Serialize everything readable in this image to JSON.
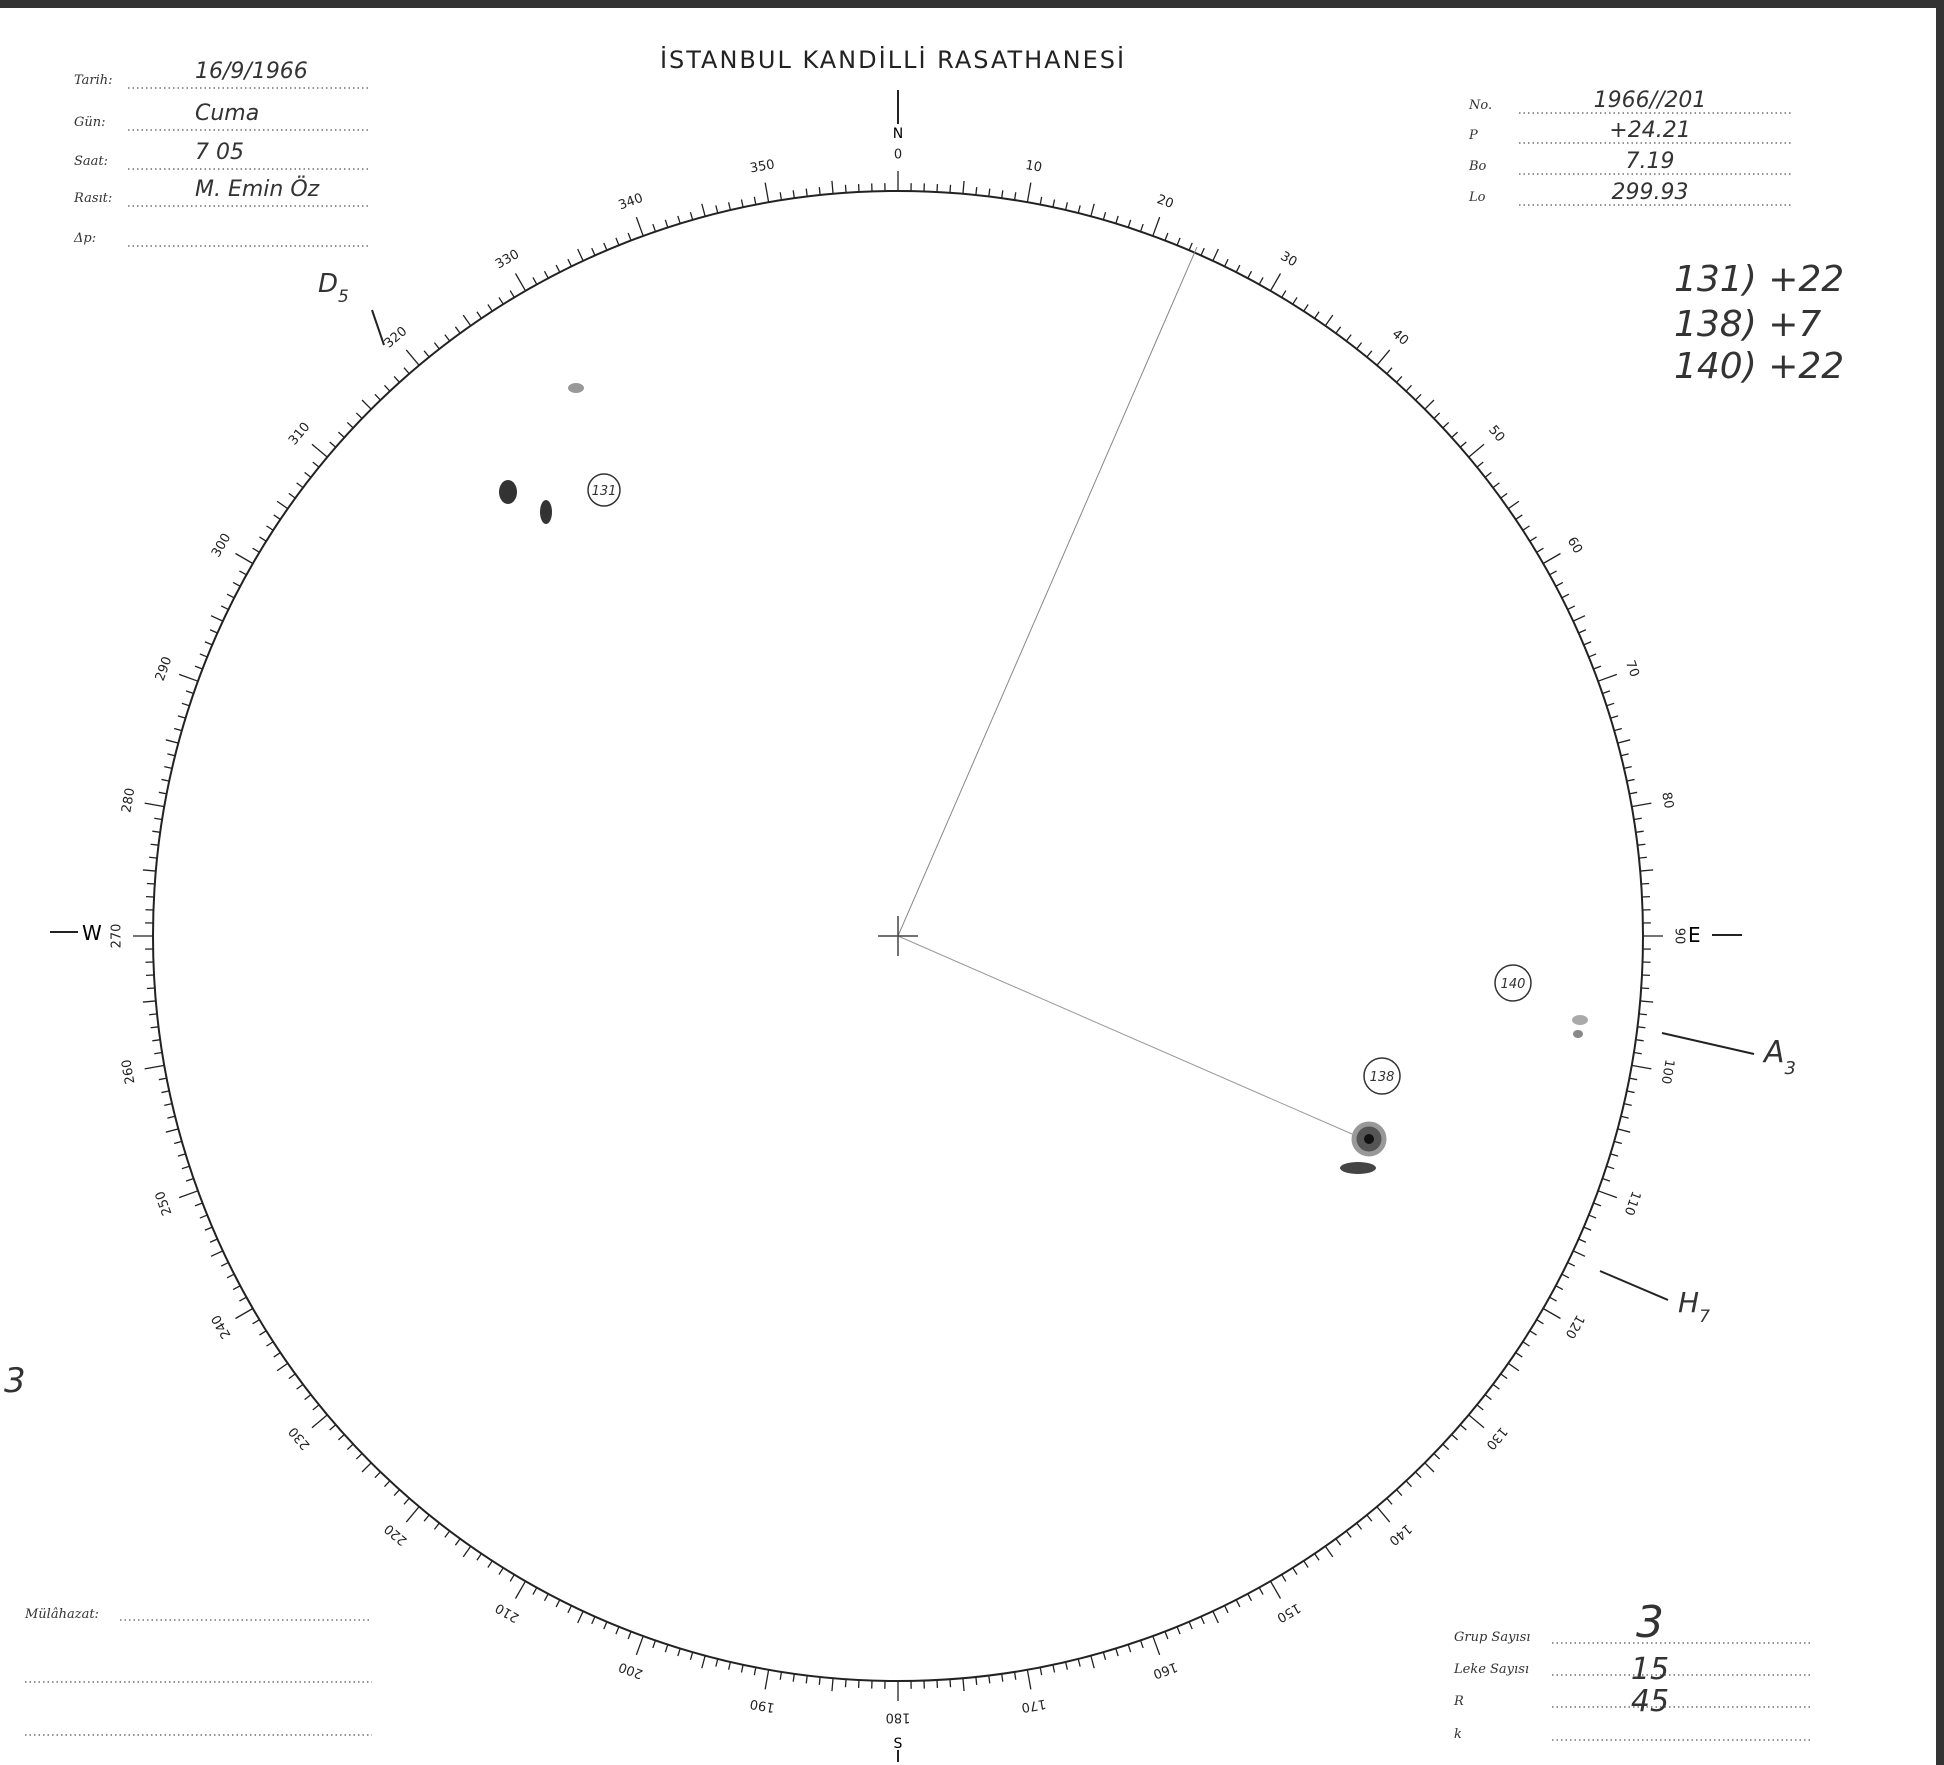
{
  "header": {
    "title": "İSTANBUL KANDİLLİ RASATHANESİ"
  },
  "left_fields": [
    {
      "label": "Tarih:",
      "value": "16/9/1966"
    },
    {
      "label": "Gün:",
      "value": "Cuma"
    },
    {
      "label": "Saat:",
      "value": "7 05"
    },
    {
      "label": "Rasıt:",
      "value": "M. Emin Öz"
    },
    {
      "label": "Δp:"
    }
  ],
  "right_fields": [
    {
      "label": "No.",
      "value": "1966//201"
    },
    {
      "label": "P",
      "value": "+24.21"
    },
    {
      "label": "Bo",
      "value": "7.19"
    },
    {
      "label": "Lo",
      "value": "299.93"
    }
  ],
  "notes": [
    "131) +22",
    "138) +7",
    "140) +22"
  ],
  "disk": {
    "degree_labels": [
      0,
      10,
      20,
      30,
      40,
      50,
      60,
      70,
      80,
      90,
      100,
      110,
      120,
      130,
      140,
      150,
      160,
      170,
      180,
      190,
      200,
      210,
      220,
      230,
      240,
      250,
      260,
      270,
      280,
      290,
      300,
      310,
      320,
      330,
      340,
      350
    ],
    "cardinals": {
      "north": "N",
      "east": "E",
      "south": "S",
      "west": "W"
    },
    "markers": [
      {
        "letter": "D",
        "index": "5"
      },
      {
        "letter": "A",
        "index": "3"
      },
      {
        "letter": "H",
        "index": "7"
      }
    ],
    "groups": [
      "131",
      "138",
      "140"
    ]
  },
  "footer": {
    "remarks": "Mülâhazat:",
    "fields": [
      {
        "label": "Grup Sayısı",
        "value": "3"
      },
      {
        "label": "Leke Sayısı",
        "value": "15"
      },
      {
        "label": "R",
        "value": "45"
      },
      {
        "label": "k"
      }
    ]
  },
  "margin_mark": "3"
}
